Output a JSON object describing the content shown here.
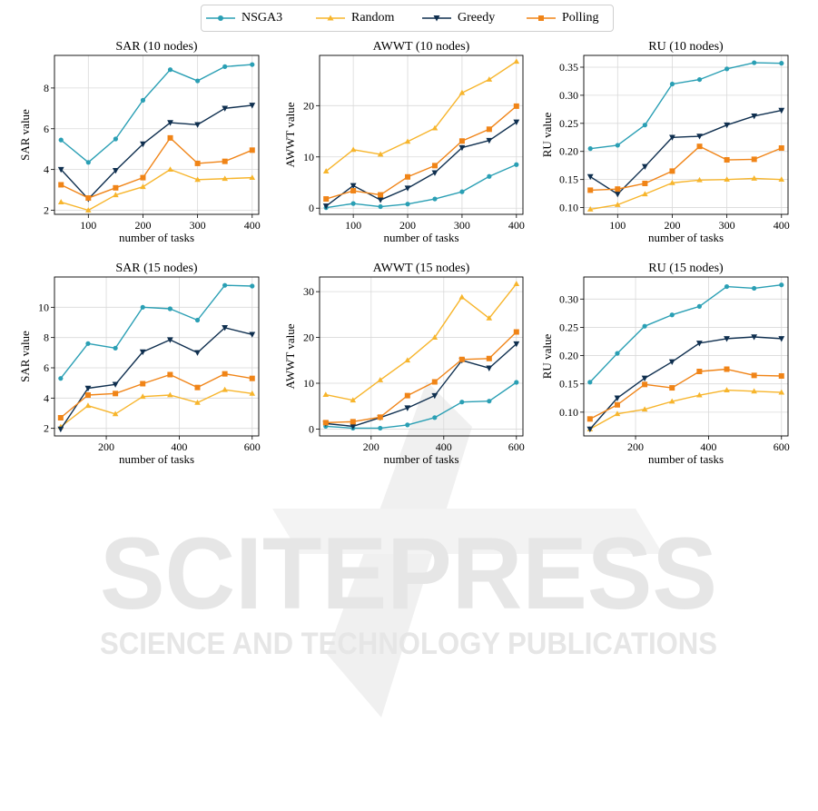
{
  "legend": {
    "items": [
      {
        "name": "NSGA3",
        "color": "#2a9fb4",
        "marker": "circle"
      },
      {
        "name": "Random",
        "color": "#f7b52c",
        "marker": "triangle-up"
      },
      {
        "name": "Greedy",
        "color": "#0f2f4f",
        "marker": "triangle-down"
      },
      {
        "name": "Polling",
        "color": "#f08417",
        "marker": "square"
      }
    ]
  },
  "watermark": {
    "main": "SCITEPRESS",
    "sub": "SCIENCE AND TECHNOLOGY PUBLICATIONS"
  },
  "chart_data": [
    {
      "type": "line",
      "title": "SAR (10 nodes)",
      "xlabel": "number of tasks",
      "ylabel": "SAR value",
      "x": [
        50,
        100,
        150,
        200,
        250,
        300,
        350,
        400
      ],
      "xlim": [
        38,
        412
      ],
      "ylim": [
        1.8,
        9.6
      ],
      "xticks": [
        100,
        200,
        300,
        400
      ],
      "yticks": [
        2,
        4,
        6,
        8
      ],
      "tickfmt": 0,
      "series": [
        {
          "name": "NSGA3",
          "values": [
            5.45,
            4.35,
            5.5,
            7.4,
            8.9,
            8.35,
            9.05,
            9.15
          ]
        },
        {
          "name": "Random",
          "values": [
            2.4,
            2.0,
            2.75,
            3.15,
            4.0,
            3.5,
            3.55,
            3.6
          ]
        },
        {
          "name": "Greedy",
          "values": [
            4.0,
            2.55,
            3.95,
            5.25,
            6.3,
            6.2,
            7.0,
            7.15
          ]
        },
        {
          "name": "Polling",
          "values": [
            3.25,
            2.6,
            3.1,
            3.6,
            5.55,
            4.3,
            4.4,
            4.95
          ]
        }
      ]
    },
    {
      "type": "line",
      "title": "AWWT (10 nodes)",
      "xlabel": "number of tasks",
      "ylabel": "AWWT value",
      "x": [
        50,
        100,
        150,
        200,
        250,
        300,
        350,
        400
      ],
      "xlim": [
        38,
        412
      ],
      "ylim": [
        -1.2,
        29.8
      ],
      "xticks": [
        100,
        200,
        300,
        400
      ],
      "yticks": [
        0,
        10,
        20
      ],
      "tickfmt": 0,
      "series": [
        {
          "name": "NSGA3",
          "values": [
            0.1,
            0.9,
            0.3,
            0.8,
            1.8,
            3.2,
            6.2,
            8.5
          ]
        },
        {
          "name": "Random",
          "values": [
            7.2,
            11.4,
            10.5,
            13.0,
            15.6,
            22.5,
            25.1,
            28.6
          ]
        },
        {
          "name": "Greedy",
          "values": [
            0.4,
            4.4,
            1.6,
            3.9,
            6.9,
            11.8,
            13.2,
            16.8
          ]
        },
        {
          "name": "Polling",
          "values": [
            1.8,
            3.4,
            2.6,
            6.1,
            8.3,
            13.1,
            15.4,
            19.9
          ]
        }
      ]
    },
    {
      "type": "line",
      "title": "RU (10 nodes)",
      "xlabel": "number of tasks",
      "ylabel": "RU value",
      "x": [
        50,
        100,
        150,
        200,
        250,
        300,
        350,
        400
      ],
      "xlim": [
        38,
        412
      ],
      "ylim": [
        0.088,
        0.371
      ],
      "xticks": [
        100,
        200,
        300,
        400
      ],
      "yticks": [
        0.1,
        0.15,
        0.2,
        0.25,
        0.3,
        0.35
      ],
      "tickfmt": 2,
      "series": [
        {
          "name": "NSGA3",
          "values": [
            0.205,
            0.211,
            0.247,
            0.32,
            0.328,
            0.347,
            0.358,
            0.357
          ]
        },
        {
          "name": "Random",
          "values": [
            0.097,
            0.105,
            0.124,
            0.144,
            0.149,
            0.15,
            0.152,
            0.15
          ]
        },
        {
          "name": "Greedy",
          "values": [
            0.155,
            0.124,
            0.173,
            0.225,
            0.227,
            0.247,
            0.263,
            0.273
          ]
        },
        {
          "name": "Polling",
          "values": [
            0.131,
            0.133,
            0.143,
            0.165,
            0.209,
            0.185,
            0.186,
            0.206
          ]
        }
      ]
    },
    {
      "type": "line",
      "title": "SAR (15 nodes)",
      "xlabel": "number of tasks",
      "ylabel": "SAR value",
      "x": [
        75,
        150,
        225,
        300,
        375,
        450,
        525,
        600
      ],
      "xlim": [
        58,
        618
      ],
      "ylim": [
        1.5,
        12.0
      ],
      "xticks": [
        200,
        400,
        600
      ],
      "yticks": [
        2,
        4,
        6,
        8,
        10
      ],
      "tickfmt": 0,
      "series": [
        {
          "name": "NSGA3",
          "values": [
            5.3,
            7.6,
            7.3,
            10.0,
            9.9,
            9.15,
            11.45,
            11.4
          ]
        },
        {
          "name": "Random",
          "values": [
            2.1,
            3.5,
            2.95,
            4.1,
            4.2,
            3.7,
            4.55,
            4.3
          ]
        },
        {
          "name": "Greedy",
          "values": [
            1.95,
            4.65,
            4.9,
            7.05,
            7.85,
            7.0,
            8.65,
            8.2
          ]
        },
        {
          "name": "Polling",
          "values": [
            2.7,
            4.2,
            4.3,
            4.95,
            5.55,
            4.7,
            5.6,
            5.3
          ]
        }
      ]
    },
    {
      "type": "line",
      "title": "AWWT (15 nodes)",
      "xlabel": "number of tasks",
      "ylabel": "AWWT value",
      "x": [
        75,
        150,
        225,
        300,
        375,
        450,
        525,
        600
      ],
      "xlim": [
        58,
        618
      ],
      "ylim": [
        -1.5,
        33.2
      ],
      "xticks": [
        200,
        400,
        600
      ],
      "yticks": [
        0,
        10,
        20,
        30
      ],
      "tickfmt": 0,
      "series": [
        {
          "name": "NSGA3",
          "values": [
            0.6,
            0.2,
            0.2,
            0.9,
            2.5,
            5.9,
            6.1,
            10.2
          ]
        },
        {
          "name": "Random",
          "values": [
            7.5,
            6.3,
            10.7,
            15.0,
            20.0,
            28.8,
            24.2,
            31.7
          ]
        },
        {
          "name": "Greedy",
          "values": [
            1.2,
            0.6,
            2.5,
            4.6,
            7.3,
            15.0,
            13.3,
            18.6
          ]
        },
        {
          "name": "Polling",
          "values": [
            1.4,
            1.6,
            2.6,
            7.3,
            10.3,
            15.2,
            15.4,
            21.2
          ]
        }
      ]
    },
    {
      "type": "line",
      "title": "RU (15 nodes)",
      "xlabel": "number of tasks",
      "ylabel": "RU value",
      "x": [
        75,
        150,
        225,
        300,
        375,
        450,
        525,
        600
      ],
      "xlim": [
        58,
        618
      ],
      "ylim": [
        0.058,
        0.339
      ],
      "xticks": [
        200,
        400,
        600
      ],
      "yticks": [
        0.1,
        0.15,
        0.2,
        0.25,
        0.3
      ],
      "tickfmt": 2,
      "series": [
        {
          "name": "NSGA3",
          "values": [
            0.153,
            0.204,
            0.252,
            0.272,
            0.287,
            0.322,
            0.319,
            0.325
          ]
        },
        {
          "name": "Random",
          "values": [
            0.07,
            0.097,
            0.105,
            0.119,
            0.13,
            0.139,
            0.137,
            0.135
          ]
        },
        {
          "name": "Greedy",
          "values": [
            0.07,
            0.125,
            0.16,
            0.189,
            0.222,
            0.23,
            0.233,
            0.23
          ]
        },
        {
          "name": "Polling",
          "values": [
            0.088,
            0.113,
            0.149,
            0.143,
            0.172,
            0.176,
            0.165,
            0.164
          ]
        }
      ]
    }
  ]
}
